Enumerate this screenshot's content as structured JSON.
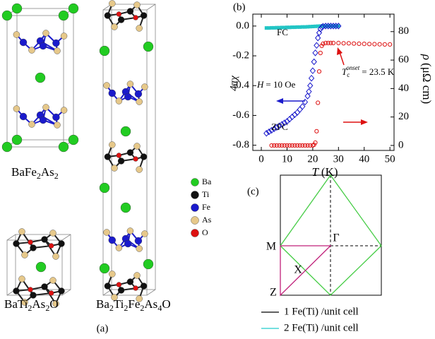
{
  "panel_a": {
    "label": "(a)",
    "structures": [
      {
        "formula": [
          "BaFe",
          "2",
          "As",
          "2"
        ]
      },
      {
        "formula": [
          "BaTi",
          "2",
          "As",
          "2",
          "O"
        ]
      },
      {
        "formula": [
          "Ba",
          "2",
          "Ti",
          "2",
          "Fe",
          "2",
          "As",
          "4",
          "O"
        ]
      }
    ],
    "legend": [
      {
        "label": "Ba",
        "color": "#22cc22"
      },
      {
        "label": "Ti",
        "color": "#111111"
      },
      {
        "label": "Fe",
        "color": "#1a1acc"
      },
      {
        "label": "As",
        "color": "#e6c88a"
      },
      {
        "label": "O",
        "color": "#dd1111"
      }
    ]
  },
  "panel_c": {
    "label": "(c)",
    "points": [
      "M",
      "Γ",
      "X",
      "Z"
    ],
    "legend": [
      {
        "text": "1 Fe(Ti) /unit cell",
        "color": "#000000"
      },
      {
        "text": "2 Fe(Ti) /unit cell",
        "color": "#22cccc"
      }
    ],
    "zone_colors": {
      "small": "#44cc44",
      "path": "#c0207a"
    }
  },
  "chart_data": {
    "type": "scatter",
    "panel_label": "(b)",
    "x_label": {
      "symbol": "T",
      "unit": "(K)"
    },
    "y_label": "4πχ",
    "y2_label": {
      "symbol": "ρ",
      "unit": "(μΩ cm)"
    },
    "xlim": [
      -3.3,
      51.6
    ],
    "xticks": [
      0,
      10,
      20,
      30,
      40,
      50
    ],
    "ylim": [
      -0.835,
      0.08
    ],
    "yticks": [
      {
        "value": 0,
        "label": "0.0"
      },
      -0.2,
      -0.4,
      -0.6,
      -0.8
    ],
    "y2lim": [
      -3.5,
      92.3
    ],
    "y2ticks": [
      0,
      20,
      40,
      60,
      80
    ],
    "series": [
      {
        "name": "FC",
        "color": "#22c5c5",
        "marker": "square",
        "x": [
          2,
          3,
          4,
          5,
          6,
          7,
          8,
          9,
          10,
          11,
          12,
          13,
          14,
          15,
          16,
          17,
          18,
          19,
          20,
          21,
          22,
          23,
          24,
          25,
          26,
          27,
          28,
          29,
          30
        ],
        "values": [
          -0.013,
          -0.013,
          -0.012,
          -0.012,
          -0.011,
          -0.011,
          -0.01,
          -0.01,
          -0.009,
          -0.009,
          -0.008,
          -0.008,
          -0.007,
          -0.007,
          -0.006,
          -0.006,
          -0.005,
          -0.004,
          -0.003,
          -0.002,
          -0.001,
          0,
          0,
          0,
          0,
          0,
          0,
          0,
          0
        ]
      },
      {
        "name": "ZFC",
        "color": "#1a1acc",
        "marker": "diamond",
        "x": [
          2,
          3,
          4,
          5,
          6,
          7,
          8,
          9,
          10,
          11,
          12,
          13,
          14,
          15,
          16,
          17,
          18,
          18.5,
          19,
          19.5,
          20,
          20.5,
          21,
          21.5,
          22,
          22.5,
          23,
          23.5,
          24,
          25,
          26,
          27,
          28,
          29,
          30
        ],
        "values": [
          -0.72,
          -0.71,
          -0.7,
          -0.69,
          -0.68,
          -0.67,
          -0.66,
          -0.65,
          -0.64,
          -0.625,
          -0.61,
          -0.595,
          -0.58,
          -0.56,
          -0.54,
          -0.51,
          -0.47,
          -0.44,
          -0.4,
          -0.35,
          -0.3,
          -0.24,
          -0.18,
          -0.13,
          -0.08,
          -0.045,
          -0.02,
          -0.008,
          -0.002,
          0,
          0,
          0,
          0,
          0,
          0
        ]
      },
      {
        "color": "#dd1111",
        "marker": "circle",
        "axis": "y2",
        "x": [
          4,
          5,
          6,
          7,
          8,
          9,
          10,
          11,
          12,
          13,
          14,
          15,
          16,
          17,
          18,
          19,
          20,
          20.5,
          21,
          21.5,
          22,
          22.5,
          23,
          23.5,
          24,
          25,
          26,
          27,
          28,
          30,
          32,
          34,
          36,
          38,
          40,
          42,
          44,
          46,
          48,
          50
        ],
        "values": [
          0,
          0,
          0,
          0,
          0,
          0,
          0,
          0,
          0,
          0,
          0,
          0,
          0,
          0,
          0,
          0,
          0,
          0.5,
          2,
          10,
          30,
          52,
          65,
          70,
          71.5,
          72,
          72,
          72,
          72,
          72,
          71.8,
          71.8,
          71.6,
          71.5,
          71.4,
          71.3,
          71.2,
          71.1,
          71,
          71
        ]
      }
    ],
    "annotations": {
      "field": {
        "symbol": "H",
        "text": "= 10 Oe"
      },
      "tc": {
        "symbol": "T",
        "sub": "c",
        "sup": "onset",
        "text": "= 23.5 K"
      }
    }
  }
}
